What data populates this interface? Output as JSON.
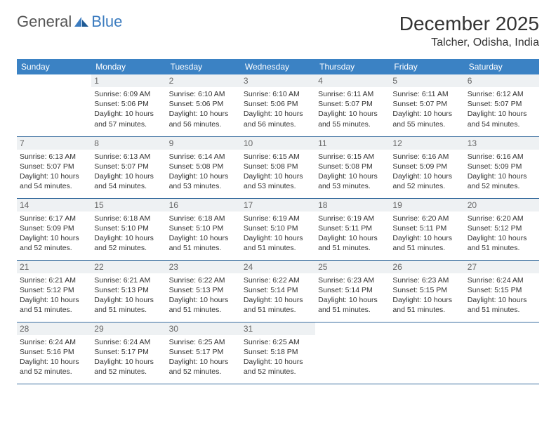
{
  "logo": {
    "part1": "General",
    "part2": "Blue"
  },
  "title": "December 2025",
  "location": "Talcher, Odisha, India",
  "colors": {
    "header_bg": "#3b82c4",
    "row_border": "#3b6fa0",
    "daynum_bg": "#eef1f3",
    "text": "#333333",
    "logo_gray": "#555555",
    "logo_blue": "#3b7bbf",
    "background": "#ffffff"
  },
  "typography": {
    "title_size": 28,
    "location_size": 16,
    "dayheader_size": 12,
    "daynum_size": 12,
    "cell_size": 10.5
  },
  "day_headers": [
    "Sunday",
    "Monday",
    "Tuesday",
    "Wednesday",
    "Thursday",
    "Friday",
    "Saturday"
  ],
  "weeks": [
    [
      {},
      {
        "n": "1",
        "sr": "6:09 AM",
        "ss": "5:06 PM",
        "dl": "10 hours and 57 minutes."
      },
      {
        "n": "2",
        "sr": "6:10 AM",
        "ss": "5:06 PM",
        "dl": "10 hours and 56 minutes."
      },
      {
        "n": "3",
        "sr": "6:10 AM",
        "ss": "5:06 PM",
        "dl": "10 hours and 56 minutes."
      },
      {
        "n": "4",
        "sr": "6:11 AM",
        "ss": "5:07 PM",
        "dl": "10 hours and 55 minutes."
      },
      {
        "n": "5",
        "sr": "6:11 AM",
        "ss": "5:07 PM",
        "dl": "10 hours and 55 minutes."
      },
      {
        "n": "6",
        "sr": "6:12 AM",
        "ss": "5:07 PM",
        "dl": "10 hours and 54 minutes."
      }
    ],
    [
      {
        "n": "7",
        "sr": "6:13 AM",
        "ss": "5:07 PM",
        "dl": "10 hours and 54 minutes."
      },
      {
        "n": "8",
        "sr": "6:13 AM",
        "ss": "5:07 PM",
        "dl": "10 hours and 54 minutes."
      },
      {
        "n": "9",
        "sr": "6:14 AM",
        "ss": "5:08 PM",
        "dl": "10 hours and 53 minutes."
      },
      {
        "n": "10",
        "sr": "6:15 AM",
        "ss": "5:08 PM",
        "dl": "10 hours and 53 minutes."
      },
      {
        "n": "11",
        "sr": "6:15 AM",
        "ss": "5:08 PM",
        "dl": "10 hours and 53 minutes."
      },
      {
        "n": "12",
        "sr": "6:16 AM",
        "ss": "5:09 PM",
        "dl": "10 hours and 52 minutes."
      },
      {
        "n": "13",
        "sr": "6:16 AM",
        "ss": "5:09 PM",
        "dl": "10 hours and 52 minutes."
      }
    ],
    [
      {
        "n": "14",
        "sr": "6:17 AM",
        "ss": "5:09 PM",
        "dl": "10 hours and 52 minutes."
      },
      {
        "n": "15",
        "sr": "6:18 AM",
        "ss": "5:10 PM",
        "dl": "10 hours and 52 minutes."
      },
      {
        "n": "16",
        "sr": "6:18 AM",
        "ss": "5:10 PM",
        "dl": "10 hours and 51 minutes."
      },
      {
        "n": "17",
        "sr": "6:19 AM",
        "ss": "5:10 PM",
        "dl": "10 hours and 51 minutes."
      },
      {
        "n": "18",
        "sr": "6:19 AM",
        "ss": "5:11 PM",
        "dl": "10 hours and 51 minutes."
      },
      {
        "n": "19",
        "sr": "6:20 AM",
        "ss": "5:11 PM",
        "dl": "10 hours and 51 minutes."
      },
      {
        "n": "20",
        "sr": "6:20 AM",
        "ss": "5:12 PM",
        "dl": "10 hours and 51 minutes."
      }
    ],
    [
      {
        "n": "21",
        "sr": "6:21 AM",
        "ss": "5:12 PM",
        "dl": "10 hours and 51 minutes."
      },
      {
        "n": "22",
        "sr": "6:21 AM",
        "ss": "5:13 PM",
        "dl": "10 hours and 51 minutes."
      },
      {
        "n": "23",
        "sr": "6:22 AM",
        "ss": "5:13 PM",
        "dl": "10 hours and 51 minutes."
      },
      {
        "n": "24",
        "sr": "6:22 AM",
        "ss": "5:14 PM",
        "dl": "10 hours and 51 minutes."
      },
      {
        "n": "25",
        "sr": "6:23 AM",
        "ss": "5:14 PM",
        "dl": "10 hours and 51 minutes."
      },
      {
        "n": "26",
        "sr": "6:23 AM",
        "ss": "5:15 PM",
        "dl": "10 hours and 51 minutes."
      },
      {
        "n": "27",
        "sr": "6:24 AM",
        "ss": "5:15 PM",
        "dl": "10 hours and 51 minutes."
      }
    ],
    [
      {
        "n": "28",
        "sr": "6:24 AM",
        "ss": "5:16 PM",
        "dl": "10 hours and 52 minutes."
      },
      {
        "n": "29",
        "sr": "6:24 AM",
        "ss": "5:17 PM",
        "dl": "10 hours and 52 minutes."
      },
      {
        "n": "30",
        "sr": "6:25 AM",
        "ss": "5:17 PM",
        "dl": "10 hours and 52 minutes."
      },
      {
        "n": "31",
        "sr": "6:25 AM",
        "ss": "5:18 PM",
        "dl": "10 hours and 52 minutes."
      },
      {},
      {},
      {}
    ]
  ],
  "labels": {
    "sunrise": "Sunrise:",
    "sunset": "Sunset:",
    "daylight": "Daylight:"
  }
}
